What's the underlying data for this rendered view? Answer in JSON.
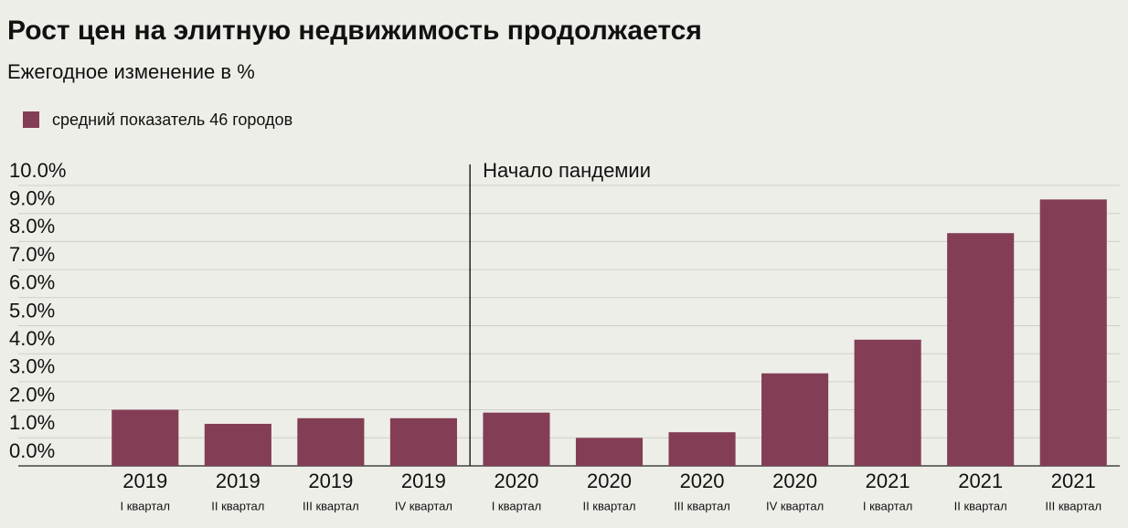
{
  "chart_data": {
    "type": "bar",
    "title": "Рост цен на элитную недвижимость продолжается",
    "subtitle": "Ежегодное изменение в %",
    "categories": [
      "2019",
      "2019",
      "2019",
      "2019",
      "2020",
      "2020",
      "2020",
      "2020",
      "2021",
      "2021",
      "2021"
    ],
    "category_sublabels": [
      "I квартал",
      "II квартал",
      "III квартал",
      "IV квартал",
      "I квартал",
      "II квартал",
      "III квартал",
      "IV квартал",
      "I квартал",
      "II квартал",
      "III квартал"
    ],
    "series": [
      {
        "name": "средний показатель 46 городов",
        "color": "#833e55",
        "values": [
          2.0,
          1.5,
          1.7,
          1.7,
          1.9,
          1.0,
          1.2,
          3.3,
          4.5,
          8.3,
          9.5
        ]
      }
    ],
    "ylim": [
      0,
      10
    ],
    "yticks": [
      {
        "value": 0,
        "label": "0.0%"
      },
      {
        "value": 1,
        "label": "1.0%"
      },
      {
        "value": 2,
        "label": "2.0%"
      },
      {
        "value": 3,
        "label": "3.0%"
      },
      {
        "value": 4,
        "label": "4.0%"
      },
      {
        "value": 5,
        "label": "5.0%"
      },
      {
        "value": 6,
        "label": "6.0%"
      },
      {
        "value": 7,
        "label": "7.0%"
      },
      {
        "value": 8,
        "label": "8.0%"
      },
      {
        "value": 9,
        "label": "9.0%"
      },
      {
        "value": 10,
        "label": "10.0%"
      }
    ],
    "grid": true,
    "annotation": "Начало пандемии"
  }
}
